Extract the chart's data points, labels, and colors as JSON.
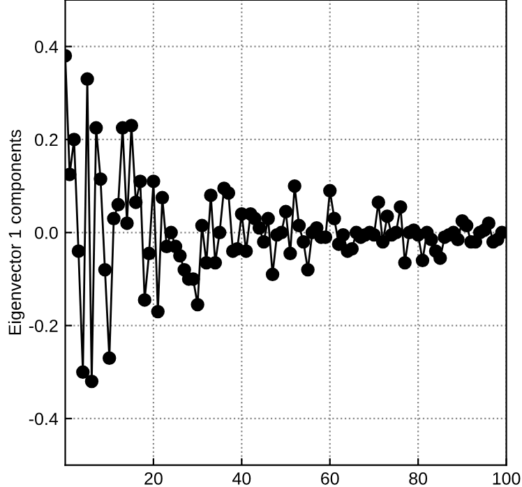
{
  "chart_data": {
    "type": "line",
    "ylabel": "Eigenvector 1 components",
    "x": [
      0,
      1,
      2,
      3,
      4,
      5,
      6,
      7,
      8,
      9,
      10,
      11,
      12,
      13,
      14,
      15,
      16,
      17,
      18,
      19,
      20,
      21,
      22,
      23,
      24,
      25,
      26,
      27,
      28,
      29,
      30,
      31,
      32,
      33,
      34,
      35,
      36,
      37,
      38,
      39,
      40,
      41,
      42,
      43,
      44,
      45,
      46,
      47,
      48,
      49,
      50,
      51,
      52,
      53,
      54,
      55,
      56,
      57,
      58,
      59,
      60,
      61,
      62,
      63,
      64,
      65,
      66,
      67,
      68,
      69,
      70,
      71,
      72,
      73,
      74,
      75,
      76,
      77,
      78,
      79,
      80,
      81,
      82,
      83,
      84,
      85,
      86,
      87,
      88,
      89,
      90,
      91,
      92,
      93,
      94,
      95,
      96,
      97,
      98,
      99
    ],
    "series": [
      {
        "color": "#000000",
        "values": [
          0.38,
          0.125,
          0.2,
          -0.04,
          -0.3,
          0.33,
          -0.32,
          0.225,
          0.115,
          -0.08,
          -0.27,
          0.03,
          0.06,
          0.225,
          0.02,
          0.23,
          0.065,
          0.11,
          -0.145,
          -0.045,
          0.11,
          -0.17,
          0.075,
          -0.03,
          0.0,
          -0.03,
          -0.05,
          -0.08,
          -0.1,
          -0.1,
          -0.155,
          0.015,
          -0.065,
          0.08,
          -0.065,
          0.0,
          0.095,
          0.085,
          -0.04,
          -0.035,
          0.04,
          -0.04,
          0.04,
          0.03,
          0.01,
          -0.02,
          0.03,
          -0.09,
          -0.005,
          0.0,
          0.045,
          -0.045,
          0.1,
          0.015,
          -0.02,
          -0.08,
          0.0,
          0.01,
          -0.01,
          -0.01,
          0.09,
          0.03,
          -0.025,
          -0.005,
          -0.04,
          -0.035,
          0.0,
          -0.01,
          -0.005,
          0.0,
          -0.005,
          0.065,
          -0.02,
          0.035,
          -0.005,
          0.0,
          0.055,
          -0.065,
          0.0,
          0.005,
          -0.005,
          -0.06,
          0.0,
          -0.015,
          -0.04,
          -0.055,
          -0.01,
          -0.005,
          0.0,
          -0.015,
          0.025,
          0.015,
          -0.02,
          -0.02,
          0.0,
          0.005,
          0.02,
          -0.02,
          -0.015,
          0.0
        ]
      }
    ],
    "xlim": [
      0,
      100
    ],
    "ylim": [
      -0.5,
      0.5
    ],
    "xticks": [
      20,
      40,
      60,
      80,
      100
    ],
    "yticks": [
      {
        "value": -0.4,
        "label": "-0.4"
      },
      {
        "value": -0.2,
        "label": "-0.2"
      },
      {
        "value": 0,
        "label": "0.0"
      },
      {
        "value": 0.2,
        "label": "0.2"
      },
      {
        "value": 0.4,
        "label": "0.4"
      }
    ],
    "grid": true,
    "marker": "circle",
    "line_style": "solid"
  }
}
